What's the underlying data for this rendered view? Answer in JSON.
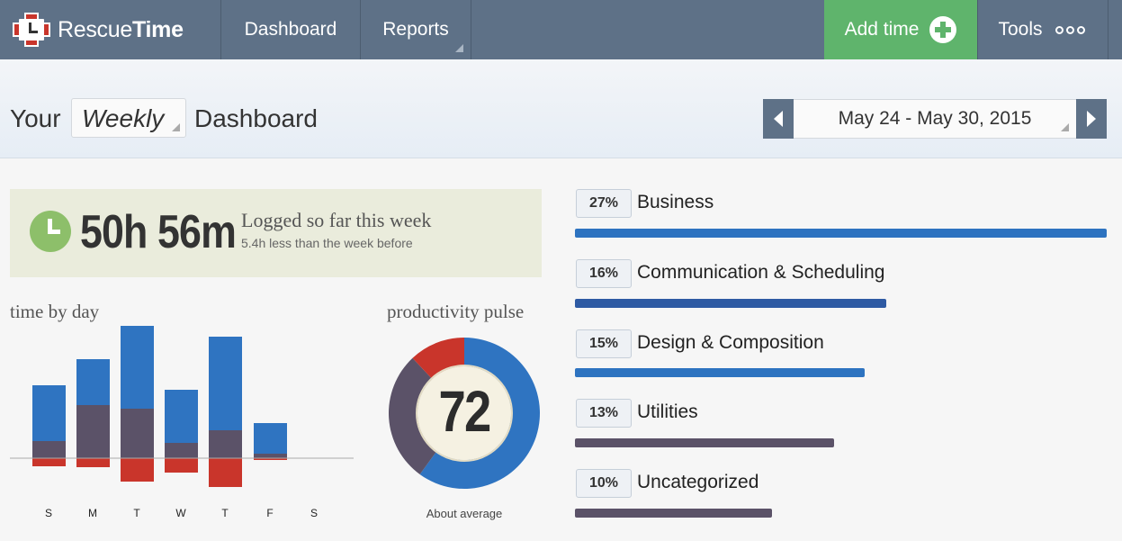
{
  "nav": {
    "brand_prefix": "Rescue",
    "brand_bold": "Time",
    "dashboard": "Dashboard",
    "reports": "Reports",
    "add_time": "Add time",
    "tools": "Tools"
  },
  "header": {
    "your": "Your",
    "period": "Weekly",
    "dashboard": "Dashboard",
    "date_range": "May 24 - May 30, 2015"
  },
  "logged": {
    "total": "50h 56m",
    "title": "Logged so far this week",
    "comparison": "5.4h less than the week before"
  },
  "time_by_day": {
    "label": "time by day",
    "days": [
      "S",
      "M",
      "T",
      "W",
      "T",
      "F",
      "S"
    ]
  },
  "pulse": {
    "label": "productivity pulse",
    "score": "72",
    "caption": "About average",
    "segments": {
      "productive": 0.6,
      "neutral": 0.28,
      "distracting": 0.12
    }
  },
  "categories": [
    {
      "percent": "27%",
      "name": "Business",
      "color": "#2d73c0",
      "fill": 1.0
    },
    {
      "percent": "16%",
      "name": "Communication & Scheduling",
      "color": "#2e5aa3",
      "fill": 0.586
    },
    {
      "percent": "15%",
      "name": "Design & Composition",
      "color": "#2d73c0",
      "fill": 0.545
    },
    {
      "percent": "13%",
      "name": "Utilities",
      "color": "#5b5268",
      "fill": 0.488
    },
    {
      "percent": "10%",
      "name": "Uncategorized",
      "color": "#5b5268",
      "fill": 0.37
    }
  ],
  "colors": {
    "nav_bg": "#5e7187",
    "add_time_green": "#5fb46c",
    "productive_blue": "#2f74c1",
    "neutral_purple": "#5b5268",
    "distracting_red": "#c9352b"
  }
}
